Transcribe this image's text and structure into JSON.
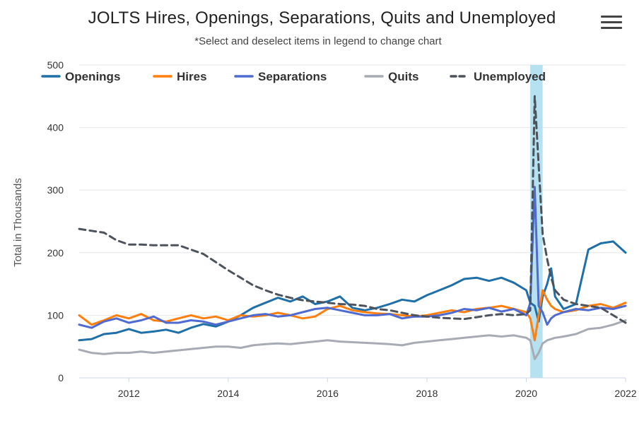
{
  "header": {
    "title": "JOLTS Hires, Openings, Separations, Quits and Unemployed",
    "subtitle": "*Select and deselect items in legend to change chart",
    "menu_icon": "hamburger-menu-icon"
  },
  "chart_data": {
    "type": "line",
    "title": "JOLTS Hires, Openings, Separations, Quits and Unemployed",
    "subtitle": "*Select and deselect items in legend to change chart",
    "xlabel": "",
    "ylabel": "Total in Thousands",
    "xlim": [
      2011.0,
      2022.0
    ],
    "ylim": [
      0,
      500
    ],
    "x_ticks": [
      2012,
      2014,
      2016,
      2018,
      2020,
      2022
    ],
    "x_tick_labels": [
      "2012",
      "2014",
      "2016",
      "2018",
      "2020",
      "2022"
    ],
    "y_ticks": [
      0,
      100,
      200,
      300,
      400,
      500
    ],
    "y_tick_labels": [
      "0",
      "100",
      "200",
      "300",
      "400",
      "500"
    ],
    "grid": true,
    "legend_position": "top",
    "recession_band": [
      2020.08,
      2020.33
    ],
    "x": [
      2011.0,
      2011.25,
      2011.5,
      2011.75,
      2012.0,
      2012.25,
      2012.5,
      2012.75,
      2013.0,
      2013.25,
      2013.5,
      2013.75,
      2014.0,
      2014.25,
      2014.5,
      2014.75,
      2015.0,
      2015.25,
      2015.5,
      2015.75,
      2016.0,
      2016.25,
      2016.5,
      2016.75,
      2017.0,
      2017.25,
      2017.5,
      2017.75,
      2018.0,
      2018.25,
      2018.5,
      2018.75,
      2019.0,
      2019.25,
      2019.5,
      2019.75,
      2020.0,
      2020.08,
      2020.17,
      2020.25,
      2020.33,
      2020.42,
      2020.5,
      2020.58,
      2020.75,
      2021.0,
      2021.25,
      2021.5,
      2021.75,
      2022.0
    ],
    "series": [
      {
        "name": "Openings",
        "color": "#1f6fa8",
        "dash": "solid",
        "values": [
          60,
          62,
          70,
          72,
          78,
          72,
          74,
          77,
          72,
          80,
          86,
          82,
          90,
          100,
          112,
          120,
          128,
          122,
          130,
          118,
          122,
          130,
          112,
          108,
          112,
          118,
          125,
          122,
          132,
          140,
          148,
          158,
          160,
          155,
          160,
          152,
          140,
          120,
          115,
          90,
          130,
          150,
          175,
          130,
          110,
          118,
          205,
          215,
          218,
          200
        ]
      },
      {
        "name": "Hires",
        "color": "#ff7f0e",
        "dash": "solid",
        "values": [
          100,
          85,
          92,
          100,
          95,
          102,
          92,
          90,
          95,
          100,
          95,
          98,
          92,
          100,
          98,
          100,
          104,
          100,
          95,
          98,
          110,
          115,
          108,
          105,
          103,
          102,
          100,
          98,
          100,
          104,
          108,
          105,
          110,
          112,
          115,
          110,
          105,
          95,
          60,
          100,
          140,
          125,
          115,
          110,
          105,
          108,
          115,
          118,
          112,
          120
        ]
      },
      {
        "name": "Separations",
        "color": "#4f6bd1",
        "dash": "solid",
        "values": [
          85,
          80,
          90,
          95,
          88,
          92,
          98,
          88,
          88,
          92,
          90,
          85,
          90,
          95,
          100,
          102,
          98,
          100,
          105,
          110,
          112,
          108,
          104,
          100,
          100,
          102,
          95,
          98,
          98,
          100,
          104,
          110,
          108,
          112,
          106,
          110,
          100,
          120,
          305,
          115,
          105,
          85,
          95,
          100,
          105,
          110,
          108,
          112,
          110,
          115
        ]
      },
      {
        "name": "Quits",
        "color": "#a7abb4",
        "dash": "solid",
        "values": [
          45,
          40,
          38,
          40,
          40,
          42,
          40,
          42,
          44,
          46,
          48,
          50,
          50,
          48,
          52,
          54,
          55,
          54,
          56,
          58,
          60,
          58,
          57,
          56,
          55,
          54,
          52,
          56,
          58,
          60,
          62,
          64,
          66,
          68,
          66,
          68,
          64,
          60,
          30,
          40,
          55,
          60,
          62,
          64,
          66,
          70,
          78,
          80,
          85,
          92
        ]
      },
      {
        "name": "Unemployed",
        "color": "#4d535c",
        "dash": "dashed",
        "values": [
          238,
          235,
          232,
          220,
          213,
          213,
          212,
          212,
          212,
          205,
          198,
          185,
          172,
          160,
          148,
          140,
          133,
          128,
          124,
          122,
          120,
          118,
          117,
          115,
          110,
          108,
          104,
          100,
          98,
          96,
          95,
          94,
          97,
          100,
          102,
          100,
          102,
          108,
          450,
          340,
          230,
          190,
          160,
          140,
          125,
          118,
          115,
          112,
          100,
          88
        ]
      }
    ]
  }
}
